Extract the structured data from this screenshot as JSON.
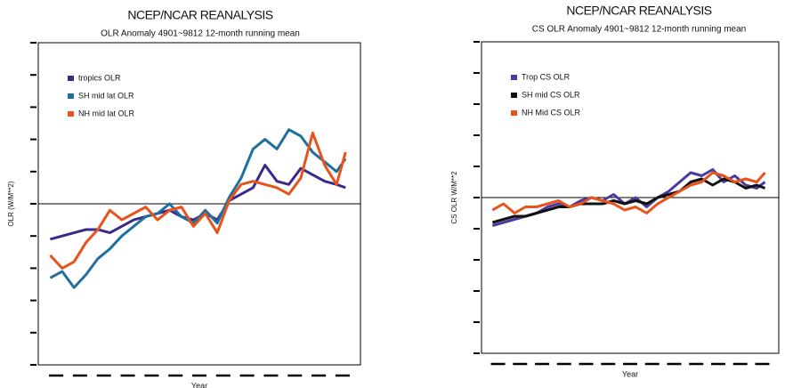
{
  "chart_data": [
    {
      "type": "line",
      "title": "NCEP/NCAR REANALYSIS",
      "subtitle": "OLR Anomaly 4901~9812 12-month running mean",
      "xlabel": "Year",
      "ylabel": "OLR (W/M**2)",
      "x": [
        1949,
        1951,
        1953,
        1955,
        1957,
        1959,
        1961,
        1963,
        1965,
        1967,
        1969,
        1971,
        1973,
        1975,
        1977,
        1979,
        1981,
        1983,
        1985,
        1987,
        1989,
        1991,
        1993,
        1995,
        1997,
        1998.5
      ],
      "series": [
        {
          "name": "tropics OLR",
          "color": "#3b2a8a",
          "values": [
            -1.1,
            -1.0,
            -0.9,
            -0.8,
            -0.8,
            -0.9,
            -0.7,
            -0.5,
            -0.4,
            -0.3,
            -0.2,
            -0.4,
            -0.5,
            -0.3,
            -0.5,
            0.1,
            0.3,
            0.5,
            1.2,
            0.7,
            0.6,
            1.1,
            0.9,
            0.7,
            0.6,
            0.5
          ]
        },
        {
          "name": "SH mid lat OLR",
          "color": "#1f6fa0",
          "values": [
            -2.3,
            -2.1,
            -2.6,
            -2.2,
            -1.7,
            -1.4,
            -1.0,
            -0.7,
            -0.4,
            -0.3,
            0.0,
            -0.4,
            -0.6,
            -0.2,
            -0.6,
            0.2,
            0.8,
            1.7,
            2.0,
            1.7,
            2.3,
            2.1,
            1.6,
            1.3,
            1.0,
            1.4
          ]
        },
        {
          "name": "NH mid lat OLR",
          "color": "#e8531c",
          "values": [
            -1.6,
            -2.0,
            -1.8,
            -1.2,
            -0.8,
            -0.2,
            -0.5,
            -0.3,
            -0.1,
            -0.5,
            -0.2,
            -0.1,
            -0.7,
            -0.3,
            -0.9,
            0.1,
            0.6,
            0.7,
            0.6,
            0.5,
            0.3,
            0.8,
            2.2,
            1.2,
            0.6,
            1.6
          ]
        }
      ],
      "xlim": [
        1947,
        2001
      ],
      "xticks": [
        1950,
        1954,
        1958,
        1962,
        1966,
        1970,
        1974,
        1978,
        1982,
        1986,
        1990,
        1994,
        1998
      ],
      "ylim": [
        -5,
        5
      ],
      "yticks": [
        -5,
        -4,
        -3,
        -2,
        -1,
        0,
        1,
        2,
        3,
        4,
        5
      ],
      "hline": 0,
      "legend": "upper left"
    },
    {
      "type": "line",
      "title": "NCEP/NCAR REANALYSIS",
      "subtitle": "CS OLR Anomaly 4901~9812 12-month running mean",
      "xlabel": "Year",
      "ylabel": "CS OLR W/M**2",
      "x": [
        1949,
        1951,
        1953,
        1955,
        1957,
        1959,
        1961,
        1963,
        1965,
        1967,
        1969,
        1971,
        1973,
        1975,
        1977,
        1979,
        1981,
        1983,
        1985,
        1987,
        1989,
        1991,
        1993,
        1995,
        1997,
        1998.5
      ],
      "series": [
        {
          "name": "Trop CS OLR",
          "color": "#4b3aa0",
          "values": [
            -0.9,
            -0.8,
            -0.7,
            -0.6,
            -0.5,
            -0.3,
            -0.2,
            -0.3,
            -0.1,
            0.0,
            -0.1,
            0.1,
            -0.2,
            0.0,
            -0.3,
            0.0,
            0.2,
            0.5,
            0.8,
            0.7,
            0.9,
            0.5,
            0.7,
            0.4,
            0.3,
            0.5
          ]
        },
        {
          "name": "SH mid CS OLR",
          "color": "#111111",
          "values": [
            -0.8,
            -0.7,
            -0.6,
            -0.6,
            -0.5,
            -0.4,
            -0.3,
            -0.3,
            -0.2,
            -0.2,
            -0.2,
            -0.1,
            -0.2,
            -0.1,
            -0.2,
            0.0,
            0.1,
            0.2,
            0.5,
            0.6,
            0.4,
            0.6,
            0.5,
            0.3,
            0.4,
            0.3
          ]
        },
        {
          "name": "NH Mid CS OLR",
          "color": "#e8531c",
          "values": [
            -0.4,
            -0.2,
            -0.5,
            -0.3,
            -0.3,
            -0.2,
            -0.1,
            -0.3,
            -0.2,
            0.0,
            -0.1,
            -0.2,
            -0.4,
            -0.3,
            -0.5,
            -0.2,
            0.0,
            0.2,
            0.4,
            0.5,
            0.8,
            0.7,
            0.5,
            0.6,
            0.5,
            0.8
          ]
        }
      ],
      "xlim": [
        1947,
        2001
      ],
      "xticks": [
        1950,
        1954,
        1958,
        1962,
        1966,
        1970,
        1974,
        1978,
        1982,
        1986,
        1990,
        1994,
        1998
      ],
      "ylim": [
        -5,
        5
      ],
      "yticks": [
        -5,
        -4,
        -3,
        -2,
        -1,
        0,
        1,
        2,
        3,
        4,
        5
      ],
      "hline": 0,
      "legend": "upper left"
    }
  ]
}
